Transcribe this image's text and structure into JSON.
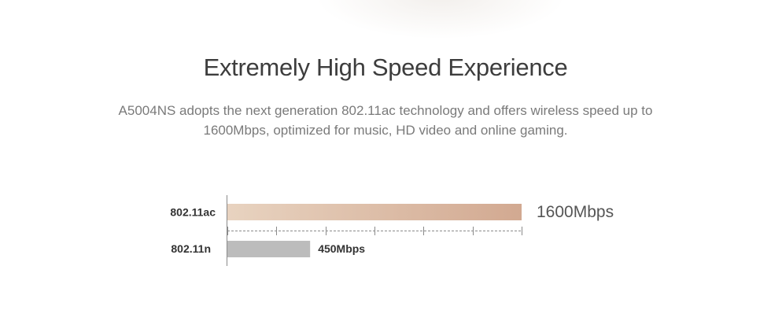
{
  "header": {
    "title": "Extremely High Speed Experience",
    "description": "A5004NS adopts the next generation 802.11ac technology and offers wireless speed up to 1600Mbps, optimized for music, HD video and online gaming."
  },
  "chart_data": {
    "type": "bar",
    "orientation": "horizontal",
    "categories": [
      "802.11ac",
      "802.11n"
    ],
    "values": [
      1600,
      450
    ],
    "value_labels": [
      "1600Mbps",
      "450Mbps"
    ],
    "unit": "Mbps",
    "xlim": [
      0,
      1600
    ],
    "grid": false,
    "colors": {
      "ac_gradient_start": "#e8d3c0",
      "ac_gradient_end": "#d2a991",
      "n_bar": "#bcbcbc",
      "axis": "#8a8a8a",
      "label": "#333333"
    }
  }
}
